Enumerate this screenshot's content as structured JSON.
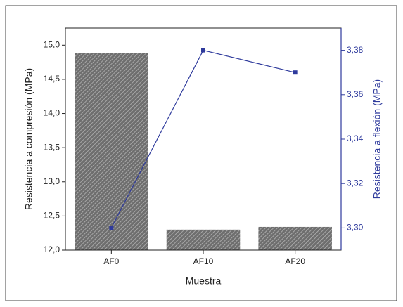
{
  "chart_data": {
    "type": "bar",
    "x_label": "Muestra",
    "y_label": "Resistencia a compresión (MPa)",
    "y2_label": "Resistencia a flexión (MPa)",
    "categories": [
      "AF0",
      "AF10",
      "AF20"
    ],
    "series": [
      {
        "type": "bar",
        "color": "#8c8c8c",
        "values": [
          14.88,
          12.3,
          12.34
        ]
      },
      {
        "type": "line",
        "axis": "y2",
        "color": "#2e3a9c",
        "values": [
          3.3,
          3.38,
          3.37
        ]
      }
    ],
    "ylim": [
      12.0,
      15.25
    ],
    "yticks": [
      {
        "value": 12.0,
        "label": "12,0"
      },
      {
        "value": 12.5,
        "label": "12,5"
      },
      {
        "value": 13.0,
        "label": "13,0"
      },
      {
        "value": 13.5,
        "label": "13,5"
      },
      {
        "value": 14.0,
        "label": "14,0"
      },
      {
        "value": 14.5,
        "label": "14,5"
      },
      {
        "value": 15.0,
        "label": "15,0"
      }
    ],
    "y2lim": [
      3.29,
      3.39
    ],
    "y2ticks": [
      {
        "value": 3.3,
        "label": "3,30"
      },
      {
        "value": 3.32,
        "label": "3,32"
      },
      {
        "value": 3.34,
        "label": "3,34"
      },
      {
        "value": 3.36,
        "label": "3,36"
      },
      {
        "value": 3.38,
        "label": "3,38"
      }
    ],
    "y2_color": "#2e3a9c"
  }
}
